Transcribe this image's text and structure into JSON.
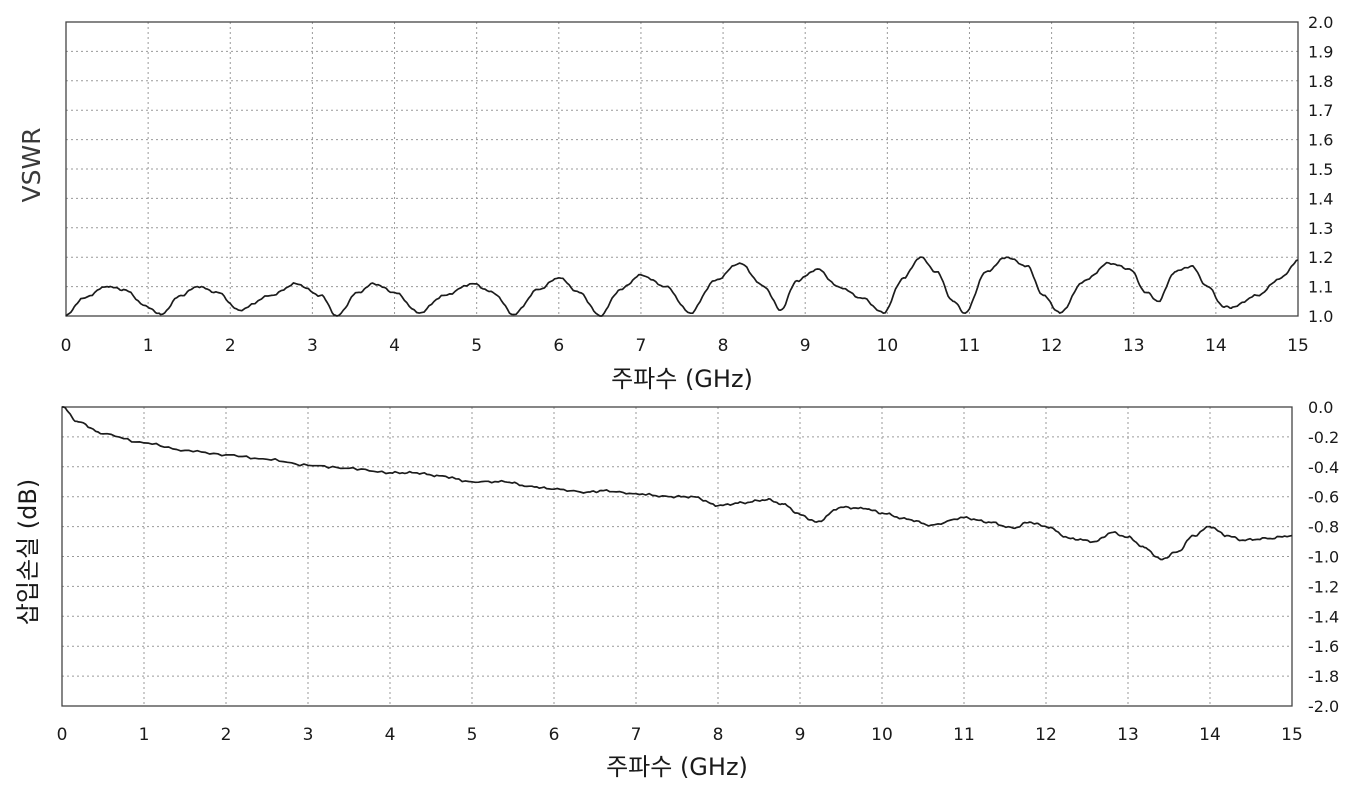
{
  "chart_data": [
    {
      "type": "line",
      "xlabel": "주파수 (GHz)",
      "ylabel": "VSWR",
      "xlim": [
        0,
        15
      ],
      "ylim": [
        1.0,
        2.0
      ],
      "grid": true,
      "x_ticks": [
        "0",
        "1",
        "2",
        "3",
        "4",
        "5",
        "6",
        "7",
        "8",
        "9",
        "10",
        "11",
        "12",
        "13",
        "14",
        "15"
      ],
      "y_ticks": [
        "2.0",
        "1.9",
        "1.8",
        "1.7",
        "1.6",
        "1.5",
        "1.4",
        "1.3",
        "1.2",
        "1.1",
        "1.0"
      ],
      "series": [
        {
          "color": "#1c1c1c",
          "x": [
            0,
            0.2,
            0.5,
            0.7,
            1.0,
            1.15,
            1.4,
            1.6,
            1.85,
            2.1,
            2.5,
            2.8,
            3.1,
            3.3,
            3.55,
            3.75,
            4.0,
            4.3,
            4.6,
            4.95,
            5.2,
            5.45,
            5.75,
            6.0,
            6.25,
            6.5,
            6.75,
            7.0,
            7.3,
            7.6,
            7.9,
            8.2,
            8.5,
            8.7,
            8.9,
            9.15,
            9.4,
            9.7,
            9.95,
            10.2,
            10.4,
            10.6,
            10.8,
            10.95,
            11.2,
            11.45,
            11.7,
            11.9,
            12.1,
            12.4,
            12.7,
            12.95,
            13.15,
            13.3,
            13.5,
            13.7,
            13.9,
            14.1,
            14.2,
            14.5,
            14.8,
            15.0
          ],
          "y": [
            1.0,
            1.06,
            1.1,
            1.09,
            1.03,
            1.005,
            1.07,
            1.1,
            1.08,
            1.02,
            1.07,
            1.11,
            1.07,
            1.0,
            1.08,
            1.11,
            1.08,
            1.01,
            1.07,
            1.11,
            1.08,
            1.005,
            1.09,
            1.13,
            1.08,
            1.0,
            1.09,
            1.14,
            1.1,
            1.01,
            1.12,
            1.18,
            1.1,
            1.02,
            1.12,
            1.16,
            1.1,
            1.06,
            1.01,
            1.13,
            1.2,
            1.15,
            1.05,
            1.01,
            1.15,
            1.2,
            1.17,
            1.07,
            1.01,
            1.12,
            1.18,
            1.16,
            1.08,
            1.05,
            1.15,
            1.17,
            1.1,
            1.03,
            1.03,
            1.07,
            1.13,
            1.19
          ]
        }
      ]
    },
    {
      "type": "line",
      "xlabel": "주파수 (GHz)",
      "ylabel": "삽입손실 (dB)",
      "xlim": [
        0,
        15
      ],
      "ylim": [
        -2.0,
        0.0
      ],
      "grid": true,
      "x_ticks": [
        "0",
        "1",
        "2",
        "3",
        "4",
        "5",
        "6",
        "7",
        "8",
        "9",
        "10",
        "11",
        "12",
        "13",
        "14",
        "15"
      ],
      "y_ticks": [
        "0.0",
        "-0.2",
        "-0.4",
        "-0.6",
        "-0.8",
        "-1.0",
        "-1.2",
        "-1.4",
        "-1.6",
        "-1.8",
        "-2.0"
      ],
      "series": [
        {
          "color": "#1c1c1c",
          "x": [
            0,
            0.2,
            0.5,
            1.0,
            1.5,
            2.0,
            2.5,
            3.0,
            3.5,
            4.0,
            4.3,
            4.6,
            5.0,
            5.4,
            5.7,
            6.0,
            6.4,
            6.6,
            7.0,
            7.4,
            7.7,
            8.0,
            8.3,
            8.6,
            8.8,
            9.0,
            9.2,
            9.5,
            9.8,
            10.0,
            10.3,
            10.6,
            11.0,
            11.3,
            11.6,
            11.8,
            12.0,
            12.3,
            12.6,
            12.8,
            13.0,
            13.2,
            13.4,
            13.6,
            13.8,
            14.0,
            14.2,
            14.4,
            14.7,
            15.0
          ],
          "y": [
            0.0,
            -0.1,
            -0.18,
            -0.24,
            -0.29,
            -0.32,
            -0.35,
            -0.39,
            -0.41,
            -0.44,
            -0.44,
            -0.46,
            -0.5,
            -0.5,
            -0.53,
            -0.55,
            -0.57,
            -0.56,
            -0.58,
            -0.6,
            -0.6,
            -0.66,
            -0.64,
            -0.62,
            -0.65,
            -0.72,
            -0.77,
            -0.67,
            -0.68,
            -0.71,
            -0.75,
            -0.79,
            -0.74,
            -0.77,
            -0.81,
            -0.77,
            -0.8,
            -0.88,
            -0.9,
            -0.84,
            -0.87,
            -0.94,
            -1.02,
            -0.97,
            -0.86,
            -0.8,
            -0.86,
            -0.89,
            -0.88,
            -0.86
          ]
        }
      ]
    }
  ]
}
